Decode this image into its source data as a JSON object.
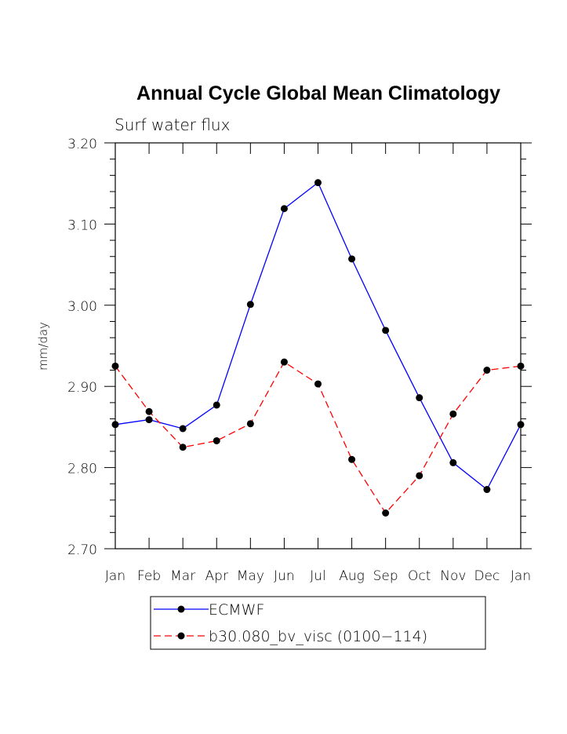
{
  "chart_data": {
    "type": "line",
    "title": "Annual Cycle Global Mean Climatology",
    "subtitle": "Surf water flux",
    "xlabel": "",
    "ylabel": "mm/day",
    "ylim": [
      2.7,
      3.2
    ],
    "yticks": [
      "2.70",
      "2.80",
      "2.90",
      "3.00",
      "3.10",
      "3.20"
    ],
    "categories": [
      "Jan",
      "Feb",
      "Mar",
      "Apr",
      "May",
      "Jun",
      "Jul",
      "Aug",
      "Sep",
      "Oct",
      "Nov",
      "Dec",
      "Jan"
    ],
    "grid": false,
    "legend_position": "bottom",
    "series": [
      {
        "name": "ECMWF",
        "color": "#0000ff",
        "dash": "solid",
        "values": [
          2.853,
          2.859,
          2.848,
          2.877,
          3.001,
          3.119,
          3.151,
          3.057,
          2.969,
          2.886,
          2.806,
          2.773,
          2.853
        ]
      },
      {
        "name": "b30.080_bv_visc (0100−114)",
        "color": "#ff0000",
        "dash": "dashed",
        "values": [
          2.925,
          2.869,
          2.825,
          2.833,
          2.854,
          2.93,
          2.903,
          2.81,
          2.744,
          2.79,
          2.866,
          2.92,
          2.925
        ]
      }
    ]
  }
}
